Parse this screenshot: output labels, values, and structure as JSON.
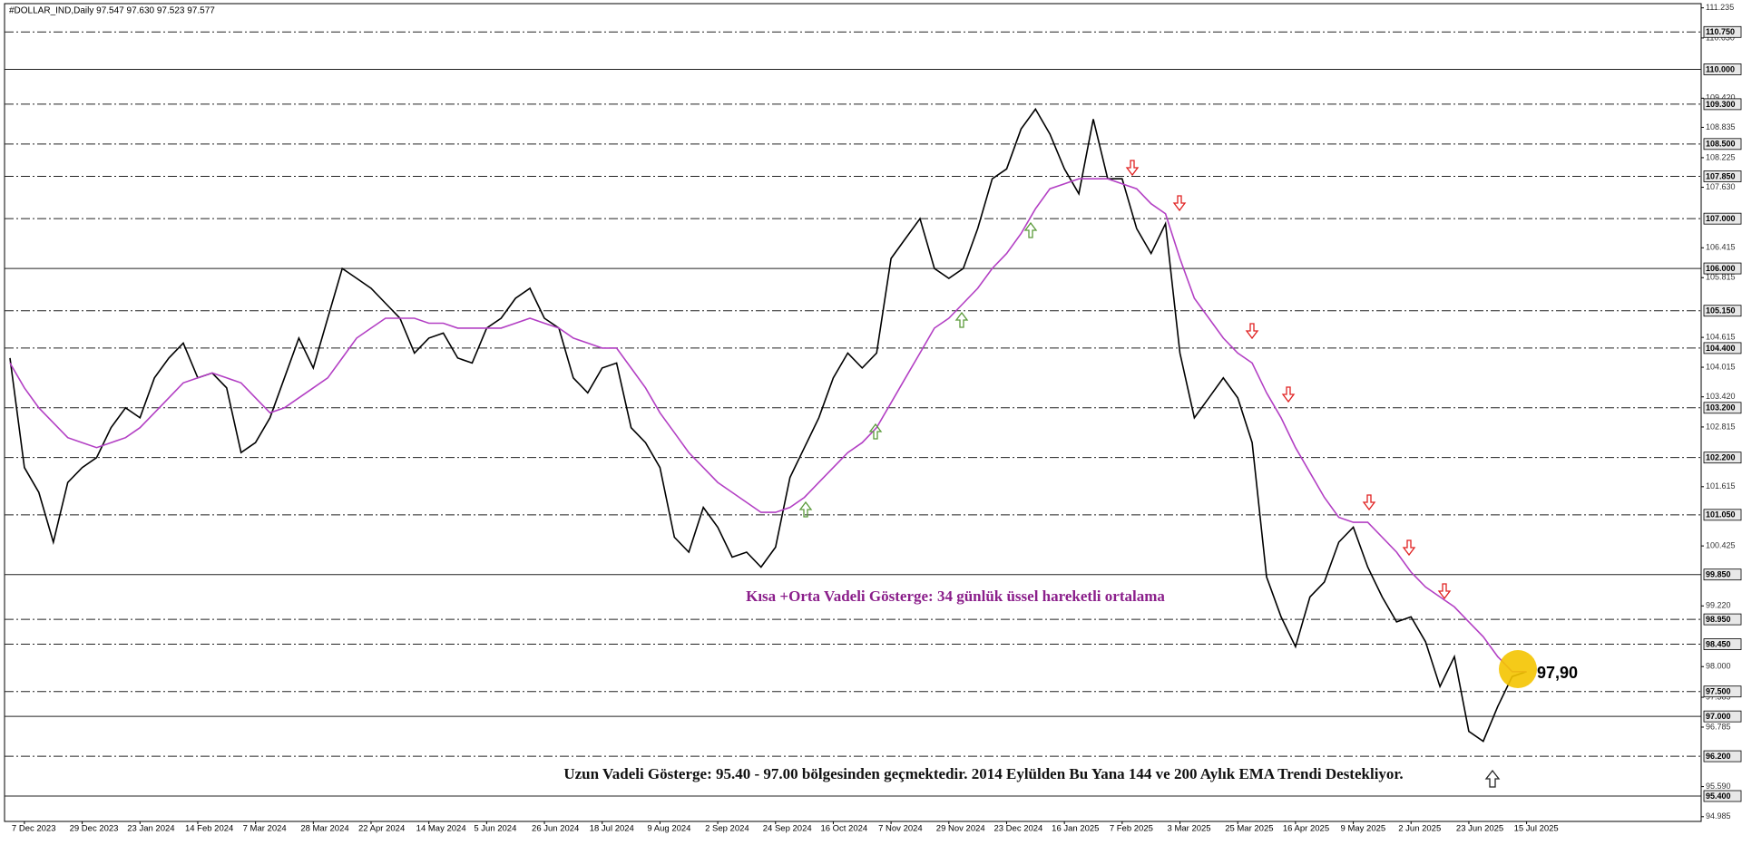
{
  "chart_data": {
    "type": "line",
    "header": "#DOLLAR_IND,Daily  97.547 97.630 97.523 97.577",
    "categories": [
      null,
      "7 Dec 2023",
      null,
      null,
      null,
      "29 Dec 2023",
      null,
      null,
      null,
      "23 Jan 2024",
      null,
      null,
      null,
      "14 Feb 2024",
      null,
      null,
      null,
      "7 Mar 2024",
      null,
      null,
      null,
      "28 Mar 2024",
      null,
      null,
      null,
      "22 Apr 2024",
      null,
      null,
      null,
      "14 May 2024",
      null,
      null,
      null,
      "5 Jun 2024",
      null,
      null,
      null,
      "26 Jun 2024",
      null,
      null,
      null,
      "18 Jul 2024",
      null,
      null,
      null,
      "9 Aug 2024",
      null,
      null,
      null,
      "2 Sep 2024",
      null,
      null,
      null,
      "24 Sep 2024",
      null,
      null,
      null,
      "16 Oct 2024",
      null,
      null,
      null,
      "7 Nov 2024",
      null,
      null,
      null,
      "29 Nov 2024",
      null,
      null,
      null,
      "23 Dec 2024",
      null,
      null,
      null,
      "16 Jan 2025",
      null,
      null,
      null,
      "7 Feb 2025",
      null,
      null,
      null,
      "3 Mar 2025",
      null,
      null,
      null,
      "25 Mar 2025",
      null,
      null,
      null,
      "16 Apr 2025",
      null,
      null,
      null,
      "9 May 2025",
      null,
      null,
      null,
      "2 Jun 2025",
      null,
      null,
      null,
      "23 Jun 2025",
      null,
      null,
      null,
      "15 Jul 2025"
    ],
    "series": [
      {
        "color": "#000000",
        "values": [
          104.2,
          102.0,
          101.5,
          100.5,
          101.7,
          102.0,
          102.2,
          102.8,
          103.2,
          103.0,
          103.8,
          104.2,
          104.5,
          103.8,
          103.9,
          103.6,
          102.3,
          102.5,
          103.0,
          103.8,
          104.6,
          104.0,
          105.0,
          106.0,
          105.8,
          105.6,
          105.3,
          105.0,
          104.3,
          104.6,
          104.7,
          104.2,
          104.1,
          104.8,
          105.0,
          105.4,
          105.6,
          105.0,
          104.8,
          103.8,
          103.5,
          104.0,
          104.1,
          102.8,
          102.5,
          102.0,
          100.6,
          100.3,
          101.2,
          100.8,
          100.2,
          100.3,
          100.0,
          100.4,
          101.8,
          102.4,
          103.0,
          103.8,
          104.3,
          104.0,
          104.3,
          106.2,
          106.6,
          107.0,
          106.0,
          105.8,
          106.0,
          106.8,
          107.8,
          108.0,
          108.8,
          109.2,
          108.7,
          108.0,
          107.5,
          109.0,
          107.8,
          107.8,
          106.8,
          106.3,
          106.9,
          104.3,
          103.0,
          103.4,
          103.8,
          103.4,
          102.5,
          99.8,
          99.0,
          98.4,
          99.4,
          99.7,
          100.5,
          100.8,
          100.0,
          99.4,
          98.9,
          99.0,
          98.5,
          97.6,
          98.2,
          96.7,
          96.5,
          97.2,
          97.8,
          97.9
        ]
      },
      {
        "color": "#b340c4",
        "values": [
          104.1,
          103.6,
          103.2,
          102.9,
          102.6,
          102.5,
          102.4,
          102.5,
          102.6,
          102.8,
          103.1,
          103.4,
          103.7,
          103.8,
          103.9,
          103.8,
          103.7,
          103.4,
          103.1,
          103.2,
          103.4,
          103.6,
          103.8,
          104.2,
          104.6,
          104.8,
          105.0,
          105.0,
          105.0,
          104.9,
          104.9,
          104.8,
          104.8,
          104.8,
          104.8,
          104.9,
          105.0,
          104.9,
          104.8,
          104.6,
          104.5,
          104.4,
          104.4,
          104.0,
          103.6,
          103.1,
          102.7,
          102.3,
          102.0,
          101.7,
          101.5,
          101.3,
          101.1,
          101.1,
          101.2,
          101.4,
          101.7,
          102.0,
          102.3,
          102.5,
          102.8,
          103.3,
          103.8,
          104.3,
          104.8,
          105.0,
          105.3,
          105.6,
          106.0,
          106.3,
          106.7,
          107.2,
          107.6,
          107.7,
          107.8,
          107.8,
          107.8,
          107.7,
          107.6,
          107.3,
          107.1,
          106.2,
          105.4,
          105.0,
          104.6,
          104.3,
          104.1,
          103.5,
          103.0,
          102.4,
          101.9,
          101.4,
          101.0,
          100.9,
          100.9,
          100.6,
          100.3,
          99.9,
          99.6,
          99.4,
          99.2,
          98.9,
          98.6,
          98.2,
          97.9,
          97.9
        ]
      }
    ],
    "ylim": [
      94.89,
      111.32
    ],
    "yticks": [
      111.235,
      {
        "value": 110.63,
        "label": "110.630"
      },
      {
        "value": 109.42,
        "label": "109.420"
      },
      108.835,
      108.225,
      {
        "value": 107.63,
        "label": "107.630"
      },
      106.415,
      105.815,
      104.615,
      104.015,
      {
        "value": 103.42,
        "label": "103.420"
      },
      102.815,
      101.615,
      100.425,
      {
        "value": 99.22,
        "label": "99.220"
      },
      {
        "value": 98,
        "label": "98.000"
      },
      97.385,
      96.785,
      {
        "value": 95.59,
        "label": "95.590"
      },
      94.985
    ],
    "levels": [
      {
        "value": 110.75,
        "label": "110.750",
        "style": "dashdot"
      },
      {
        "value": 110,
        "label": "110.000",
        "style": "solid"
      },
      {
        "value": 109.3,
        "label": "109.300",
        "style": "dashdot"
      },
      {
        "value": 108.5,
        "label": "108.500",
        "style": "dashdot"
      },
      {
        "value": 107.85,
        "label": "107.850",
        "style": "dashdot"
      },
      {
        "value": 107,
        "label": "107.000",
        "style": "dashdot"
      },
      {
        "value": 106,
        "label": "106.000",
        "style": "solid"
      },
      {
        "value": 105.15,
        "label": "105.150",
        "style": "dashdot"
      },
      {
        "value": 104.4,
        "label": "104.400",
        "style": "dashdot"
      },
      {
        "value": 103.2,
        "label": "103.200",
        "style": "dashdot"
      },
      {
        "value": 102.2,
        "label": "102.200",
        "style": "dashdot"
      },
      {
        "value": 101.05,
        "label": "101.050",
        "style": "dashdot"
      },
      {
        "value": 99.85,
        "label": "99.850",
        "style": "solid"
      },
      {
        "value": 98.95,
        "label": "98.950",
        "style": "dashdot"
      },
      {
        "value": 98.45,
        "label": "98.450",
        "style": "dashdot"
      },
      {
        "value": 97.5,
        "label": "97.500",
        "style": "dashdot"
      },
      {
        "value": 97,
        "label": "97.000",
        "style": "solid"
      },
      {
        "value": 96.2,
        "label": "96.200",
        "style": "dashdot"
      },
      {
        "value": 95.4,
        "label": "95.400",
        "style": "solid"
      }
    ],
    "annotations": [
      "Kısa +Orta Vadeli Gösterge: 34 günlük üssel hareketli ortalama",
      "Uzun Vadeli Gösterge: 95.40 - 97.00 bölgesinden geçmektedir.  2014 Eylülden Bu Yana 144 ve 200 Aylık EMA Trendi Destekliyor.",
      "97,90"
    ]
  }
}
